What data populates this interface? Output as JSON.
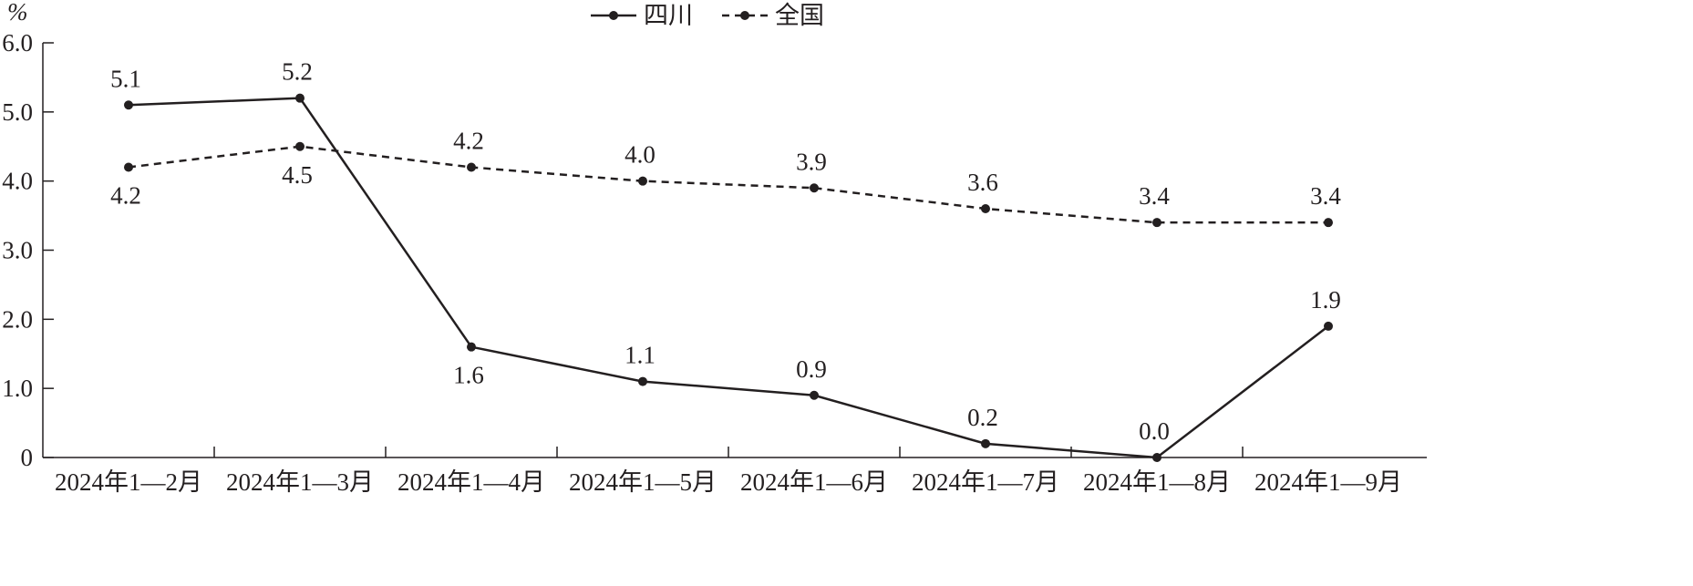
{
  "chart_data": {
    "type": "line",
    "unit": "%",
    "categories": [
      "2024年1—2月",
      "2024年1—3月",
      "2024年1—4月",
      "2024年1—5月",
      "2024年1—6月",
      "2024年1—7月",
      "2024年1—8月",
      "2024年1—9月"
    ],
    "y_ticks": [
      "0",
      "1.0",
      "2.0",
      "3.0",
      "4.0",
      "5.0",
      "6.0"
    ],
    "ylim": [
      0,
      6
    ],
    "grid": false,
    "legend_position": "top-center",
    "series": [
      {
        "name": "四川",
        "style": "solid",
        "values": [
          5.1,
          5.2,
          1.6,
          1.1,
          0.9,
          0.2,
          0.0,
          1.9
        ],
        "labels": [
          "5.1",
          "5.2",
          "1.6",
          "1.1",
          "0.9",
          "0.2",
          "0.0",
          "1.9"
        ],
        "label_side": [
          "above",
          "above",
          "below",
          "above",
          "above",
          "above",
          "above",
          "above"
        ]
      },
      {
        "name": "全国",
        "style": "dashed",
        "values": [
          4.2,
          4.5,
          4.2,
          4.0,
          3.9,
          3.6,
          3.4,
          3.4
        ],
        "labels": [
          "4.2",
          "4.5",
          "4.2",
          "4.0",
          "3.9",
          "3.6",
          "3.4",
          "3.4"
        ],
        "label_side": [
          "below",
          "below",
          "above",
          "above",
          "above",
          "above",
          "above",
          "above"
        ]
      }
    ],
    "colors": {
      "line": "#231f20",
      "axis": "#231f20"
    }
  }
}
